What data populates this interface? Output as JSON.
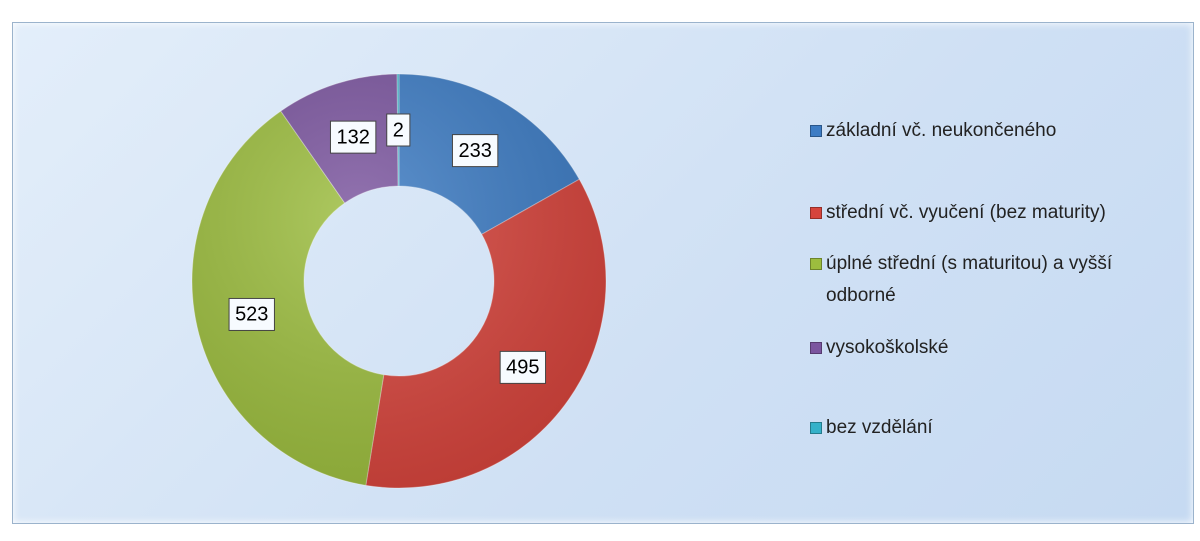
{
  "chart_data": {
    "type": "donut",
    "categories": [
      "základní vč. neukončeného",
      "střední vč. vyučení (bez maturity)",
      "úplné střední (s maturitou) a vyšší odborné",
      "vysokoškolské",
      "bez vzdělání"
    ],
    "values": [
      233,
      495,
      523,
      132,
      2
    ],
    "colors": [
      "#3d7cc4",
      "#d6443c",
      "#9cbd3e",
      "#7b559f",
      "#35b1c9"
    ],
    "legend": "right"
  }
}
